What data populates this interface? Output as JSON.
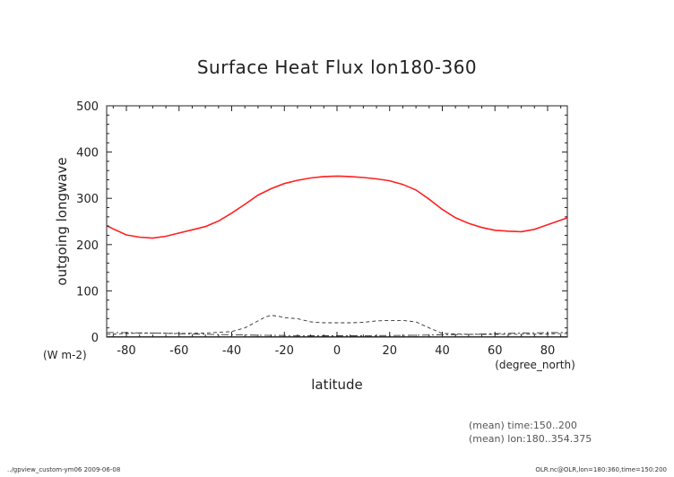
{
  "chart_data": {
    "type": "line",
    "title": "Surface Heat Flux lon180-360",
    "xlabel": "latitude",
    "ylabel": "outgoing longwave",
    "x_unit": "(degree_north)",
    "y_unit": "(W m-2)",
    "xlim": [
      -87.5,
      87.5
    ],
    "ylim": [
      0,
      500
    ],
    "x_ticks": [
      -80,
      -60,
      -40,
      -20,
      0,
      20,
      40,
      60,
      80
    ],
    "y_ticks": [
      0,
      100,
      200,
      300,
      400,
      500
    ],
    "x_tick_labels": [
      "-80",
      "-60",
      "-40",
      "-20",
      "0",
      "20",
      "40",
      "60",
      "80"
    ],
    "y_tick_labels": [
      "0",
      "100",
      "200",
      "300",
      "400",
      "500"
    ],
    "grid": false,
    "series": [
      {
        "style": "solid",
        "color": "#ff2020",
        "x": [
          -87.5,
          -85,
          -80,
          -75,
          -70,
          -65,
          -60,
          -55,
          -50,
          -45,
          -40,
          -35,
          -30,
          -25,
          -20,
          -15,
          -10,
          -5,
          0,
          5,
          10,
          15,
          20,
          25,
          30,
          35,
          40,
          45,
          50,
          55,
          60,
          65,
          70,
          75,
          80,
          85,
          87.5
        ],
        "y": [
          241,
          234,
          221,
          216,
          214,
          218,
          225,
          232,
          239,
          251,
          268,
          287,
          307,
          321,
          332,
          339,
          344,
          347,
          348,
          347,
          345,
          342,
          338,
          330,
          318,
          298,
          276,
          258,
          246,
          237,
          231,
          229,
          228,
          233,
          243,
          253,
          258
        ]
      },
      {
        "style": "dashed",
        "color": "#333333",
        "x": [
          -87.5,
          -80,
          -70,
          -60,
          -50,
          -40,
          -35,
          -30,
          -27,
          -25,
          -22,
          -20,
          -15,
          -10,
          -5,
          0,
          5,
          10,
          15,
          20,
          25,
          30,
          35,
          40,
          50,
          60,
          70,
          80,
          87.5
        ],
        "y": [
          6,
          8,
          9,
          8,
          9,
          12,
          20,
          35,
          44,
          47,
          45,
          42,
          40,
          33,
          31,
          31,
          31,
          32,
          35,
          36,
          36,
          33,
          20,
          8,
          6,
          6,
          6,
          7,
          8
        ]
      },
      {
        "style": "dashdot",
        "color": "#333333",
        "x": [
          -87.5,
          -70,
          -50,
          -30,
          -10,
          0,
          10,
          30,
          50,
          70,
          87.5
        ],
        "y": [
          10,
          9,
          6,
          4,
          3,
          3,
          3,
          4,
          6,
          9,
          10
        ]
      },
      {
        "style": "solid-thin",
        "color": "#333333",
        "x": [
          -87.5,
          -60,
          -30,
          0,
          30,
          60,
          87.5
        ],
        "y": [
          1,
          1,
          1,
          1,
          1,
          1,
          1
        ]
      }
    ]
  },
  "annotations": {
    "mean_time": "(mean) time:150..200",
    "mean_lon": "(mean) lon:180..354.375",
    "footer_left": "../gpview_custom-ym06  2009-06-08",
    "footer_right": "OLR.nc@OLR,lon=180:360,time=150:200"
  }
}
